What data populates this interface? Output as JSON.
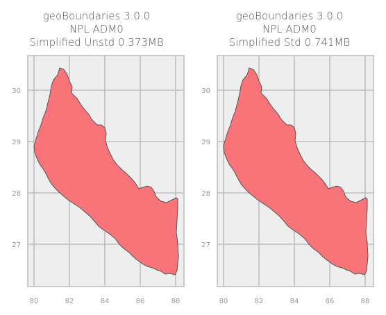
{
  "panels": [
    {
      "title_lines": [
        "geoBoundaries 3.0.0",
        "NPL ADM0",
        "Simplified Unstd 0.373MB"
      ]
    },
    {
      "title_lines": [
        "geoBoundaries 3.0.0",
        "NPL ADM0",
        "Simplified Std 0.741MB"
      ]
    }
  ],
  "chart_data": {
    "type": "map",
    "x_ticks": [
      "80",
      "82",
      "84",
      "86",
      "88"
    ],
    "y_ticks": [
      "30",
      "29",
      "28",
      "27"
    ],
    "xlim": [
      79.6,
      88.6
    ],
    "ylim": [
      26.15,
      30.7
    ],
    "fill_color": "#f87478",
    "edge_color": "#555555",
    "background_color": "#eeeeee",
    "grid_color": "#bbbbbb"
  }
}
